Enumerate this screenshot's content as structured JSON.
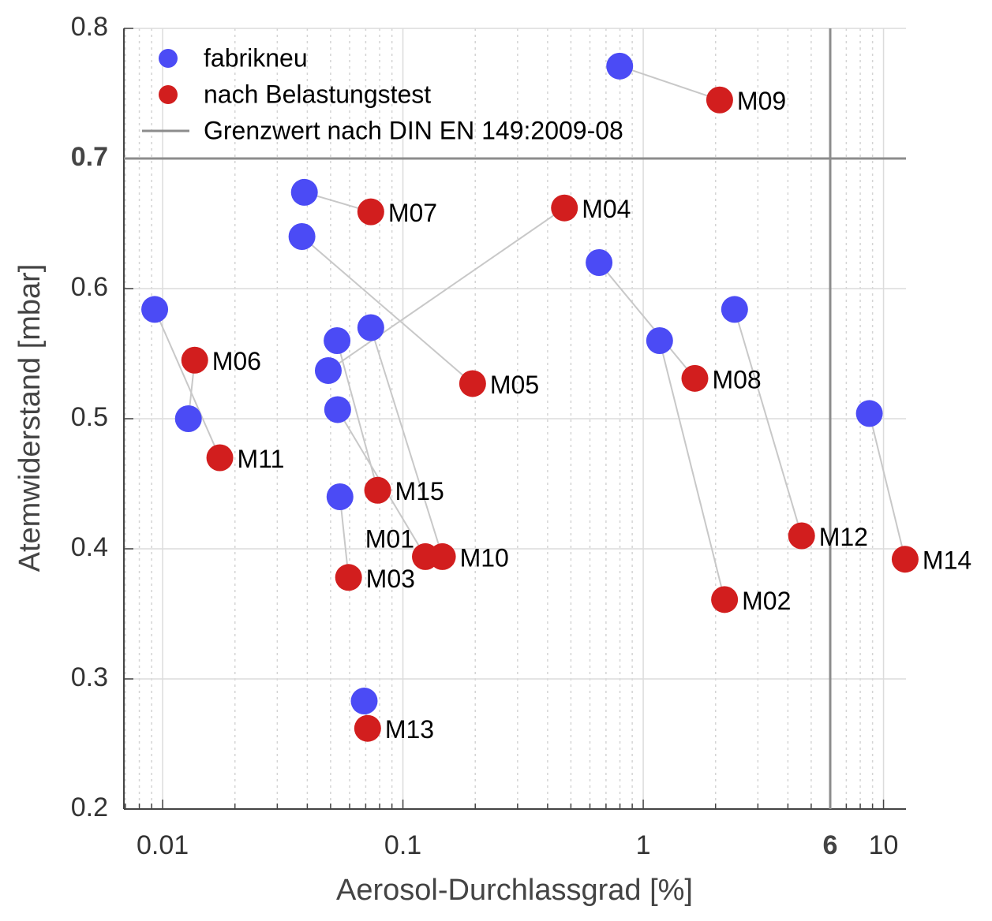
{
  "chart_data": {
    "type": "scatter",
    "xlabel": "Aerosol-Durchlassgrad [%]",
    "ylabel": "Atemwiderstand [mbar]",
    "xscale": "log",
    "xlim": [
      0.0069,
      12.4
    ],
    "ylim": [
      0.2,
      0.8
    ],
    "xticks": [
      0.01,
      0.1,
      1,
      10
    ],
    "yticks": [
      0.2,
      0.3,
      0.4,
      0.5,
      0.6,
      0.7,
      0.8
    ],
    "grid": true,
    "minor_grid": true,
    "legend": "upper left",
    "point_labels": [
      "M01",
      "M02",
      "M03",
      "M04",
      "M05",
      "M06",
      "M07",
      "M08",
      "M09",
      "M10",
      "M11",
      "M12",
      "M13",
      "M14",
      "M15"
    ],
    "connector_color": "#c8c8c8",
    "series": [
      {
        "name": "fabrikneu",
        "color": "#4b4bf5",
        "x": [
          0.0535,
          1.17,
          0.0547,
          0.0489,
          0.038,
          0.0128,
          0.0389,
          0.655,
          0.798,
          0.0735,
          0.00927,
          2.4,
          0.069,
          8.73,
          0.0532
        ],
        "values": [
          0.507,
          0.56,
          0.44,
          0.537,
          0.64,
          0.5,
          0.674,
          0.62,
          0.771,
          0.57,
          0.584,
          0.584,
          0.283,
          0.504,
          0.56
        ]
      },
      {
        "name": "nach Belastungstest",
        "color": "#d21e1e",
        "x": [
          0.124,
          2.18,
          0.0594,
          0.47,
          0.195,
          0.0136,
          0.0735,
          1.64,
          2.08,
          0.146,
          0.0173,
          4.56,
          0.0713,
          12.3,
          0.0785
        ],
        "values": [
          0.394,
          0.361,
          0.378,
          0.662,
          0.527,
          0.545,
          0.659,
          0.531,
          0.745,
          0.394,
          0.47,
          0.41,
          0.262,
          0.392,
          0.445
        ]
      }
    ],
    "reference_lines": {
      "name": "Grenzwert nach DIN EN 149:2009-08",
      "color": "#8c8c8c",
      "x": 6,
      "y": 0.7
    }
  }
}
